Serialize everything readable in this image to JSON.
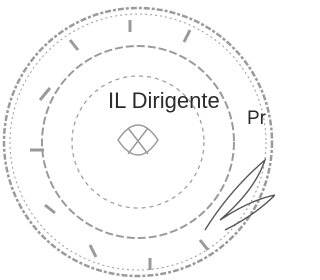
{
  "document": {
    "signature_block": {
      "title": "IL Dirigente",
      "name_fragment": "Pr"
    }
  }
}
